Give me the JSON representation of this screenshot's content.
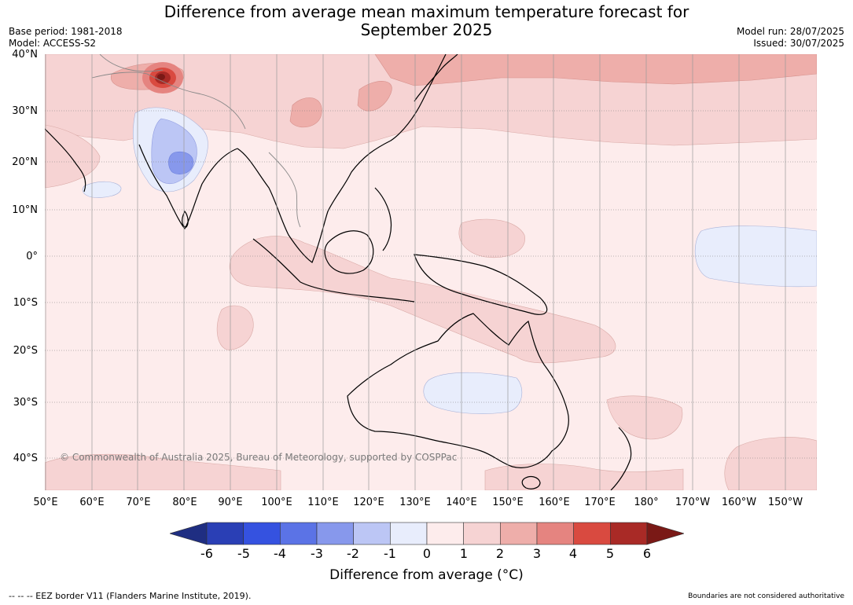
{
  "title_line1": "Difference from average mean maximum temperature forecast for",
  "title_line2": "September 2025",
  "meta": {
    "base_period": "Base period: 1981-2018",
    "model": "Model: ACCESS-S2",
    "model_run": "Model run: 28/07/2025",
    "issued": "Issued: 30/07/2025"
  },
  "copyright": "© Commonwealth of Australia 2025, Bureau of Meteorology, supported by COSPPac",
  "lat_ticks": [
    "40°N",
    "30°N",
    "20°N",
    "10°N",
    "0°",
    "10°S",
    "20°S",
    "30°S",
    "40°S"
  ],
  "lon_ticks": [
    "50°E",
    "60°E",
    "70°E",
    "80°E",
    "90°E",
    "100°E",
    "110°E",
    "120°E",
    "130°E",
    "140°E",
    "150°E",
    "160°E",
    "170°E",
    "180°",
    "170°W",
    "160°W",
    "150°W"
  ],
  "colorbar": {
    "ticks": [
      "-6",
      "-5",
      "-4",
      "-3",
      "-2",
      "-1",
      "0",
      "1",
      "2",
      "3",
      "4",
      "5",
      "6"
    ],
    "colors": [
      "#1f2e82",
      "#2a3fb5",
      "#3552e0",
      "#5b73e6",
      "#8798ec",
      "#bcc6f5",
      "#e8edfc",
      "#fdecec",
      "#f6d3d3",
      "#eeaeaa",
      "#e58480",
      "#d94a40",
      "#a92a26",
      "#7a1916"
    ],
    "label": "Difference from average (°C)"
  },
  "footer_left": "--  --  -- EEZ border V11 (Flanders Marine Institute, 2019).",
  "footer_right": "Boundaries are not considered authoritative"
}
